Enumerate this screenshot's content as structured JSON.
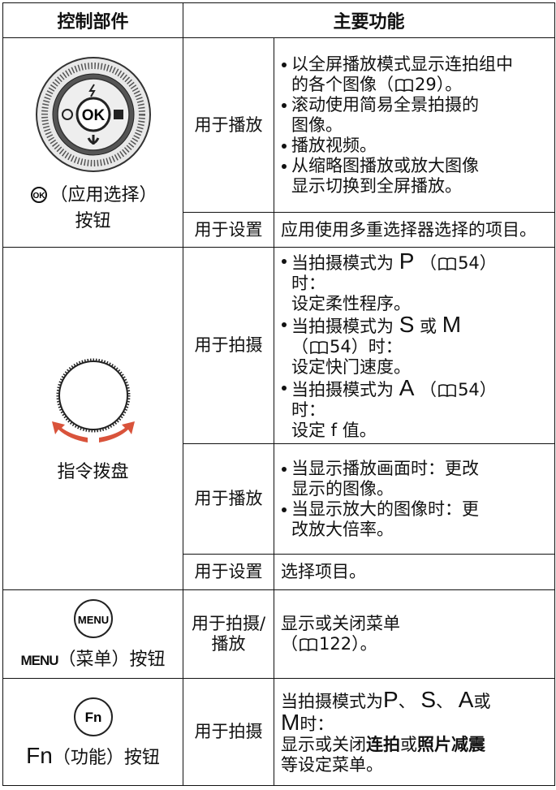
{
  "header": [
    "控制部件",
    "主要功能"
  ],
  "groups": [
    {
      "control": {
        "icon": "OK",
        "lines": [
          [
            {
              "text": "（应用选择）"
            }
          ],
          [
            {
              "text": "按钮"
            }
          ]
        ]
      },
      "functions": [
        {
          "label": [
            "用于播放"
          ],
          "bullets": true,
          "items": [
            [
              [
                {
                  "text": "以全屏播放模式显示连拍组中"
                }
              ],
              [
                {
                  "text": "的各个图像（"
                },
                {
                  "text": "29",
                  "ref": true
                },
                {
                  "text": "）。"
                }
              ]
            ],
            [
              [
                {
                  "text": "滚动使用简易全景拍摄的"
                }
              ],
              [
                {
                  "text": "图像。"
                }
              ]
            ],
            [
              [
                {
                  "text": "播放视频。"
                }
              ]
            ],
            [
              [
                {
                  "text": "从缩略图播放或放大图像"
                }
              ],
              [
                {
                  "text": "显示切换到全屏播放。"
                }
              ]
            ]
          ]
        },
        {
          "label": [
            "用于设置"
          ],
          "bullets": false,
          "items": [
            [
              [
                {
                  "text": "应用使用多重选择器选择的项目。"
                }
              ]
            ]
          ]
        }
      ]
    },
    {
      "control": {
        "lines": [
          [
            {
              "text": "指令拨盘"
            }
          ]
        ]
      },
      "functions": [
        {
          "label": [
            "用于拍摄"
          ],
          "bullets": true,
          "items": [
            [
              [
                {
                  "text": "当拍摄模式为 "
                },
                {
                  "text": "P",
                  "big": true
                },
                {
                  "text": " （"
                },
                {
                  "text": "54",
                  "ref": true
                },
                {
                  "text": "）"
                }
              ],
              [
                {
                  "text": "时："
                }
              ],
              [
                {
                  "text": "设定柔性程序。"
                }
              ]
            ],
            [
              [
                {
                  "text": "当拍摄模式为 "
                },
                {
                  "text": "S",
                  "big": true
                },
                {
                  "text": " 或 "
                },
                {
                  "text": "M",
                  "big": true
                }
              ],
              [
                {
                  "text": "（"
                },
                {
                  "text": "54",
                  "ref": true
                },
                {
                  "text": "）时："
                }
              ],
              [
                {
                  "text": "设定快门速度。"
                }
              ]
            ],
            [
              [
                {
                  "text": "当拍摄模式为 "
                },
                {
                  "text": "A",
                  "big": true
                },
                {
                  "text": " （"
                },
                {
                  "text": "54",
                  "ref": true
                },
                {
                  "text": "）"
                }
              ],
              [
                {
                  "text": "时："
                }
              ],
              [
                {
                  "text": "设定 f 值。"
                }
              ]
            ]
          ]
        },
        {
          "label": [
            "用于播放"
          ],
          "bullets": true,
          "items": [
            [
              [
                {
                  "text": "当显示播放画面时：更改"
                }
              ],
              [
                {
                  "text": "显示的图像。"
                }
              ]
            ],
            [
              [
                {
                  "text": "当显示放大的图像时：更"
                }
              ],
              [
                {
                  "text": "改放大倍率。"
                }
              ]
            ]
          ]
        },
        {
          "label": [
            "用于设置"
          ],
          "bullets": false,
          "items": [
            [
              [
                {
                  "text": "选择项目。"
                }
              ]
            ]
          ]
        }
      ]
    },
    {
      "control": {
        "icon": "MENU",
        "lines": [
          [
            {
              "text": "MENU",
              "key": true
            },
            {
              "text": "（菜单）按钮"
            }
          ]
        ]
      },
      "functions": [
        {
          "label": [
            "用于拍摄/",
            "播放"
          ],
          "bullets": false,
          "items": [
            [
              [
                {
                  "text": "显示或关闭菜单"
                }
              ],
              [
                {
                  "text": "（"
                },
                {
                  "text": "122",
                  "ref": true
                },
                {
                  "text": "）。"
                }
              ]
            ]
          ]
        }
      ]
    },
    {
      "control": {
        "icon": "Fn",
        "lines": [
          [
            {
              "text": "Fn",
              "big": true
            },
            {
              "text": "（功能）按钮"
            }
          ]
        ]
      },
      "functions": [
        {
          "label": [
            "用于拍摄"
          ],
          "bullets": false,
          "items": [
            [
              [
                {
                  "text": "当拍摄模式为"
                },
                {
                  "text": "P",
                  "big": true
                },
                {
                  "text": "、 "
                },
                {
                  "text": "S",
                  "big": true
                },
                {
                  "text": "、 "
                },
                {
                  "text": "A",
                  "big": true
                },
                {
                  "text": "或"
                }
              ],
              [
                {
                  "text": "M",
                  "big": true
                },
                {
                  "text": "时："
                }
              ],
              [
                {
                  "text": "显示或关闭"
                },
                {
                  "text": "连拍",
                  "bold": true
                },
                {
                  "text": "或"
                },
                {
                  "text": "照片减震",
                  "bold": true
                }
              ],
              [
                {
                  "text": "等设定菜单。"
                }
              ]
            ]
          ]
        }
      ]
    }
  ]
}
